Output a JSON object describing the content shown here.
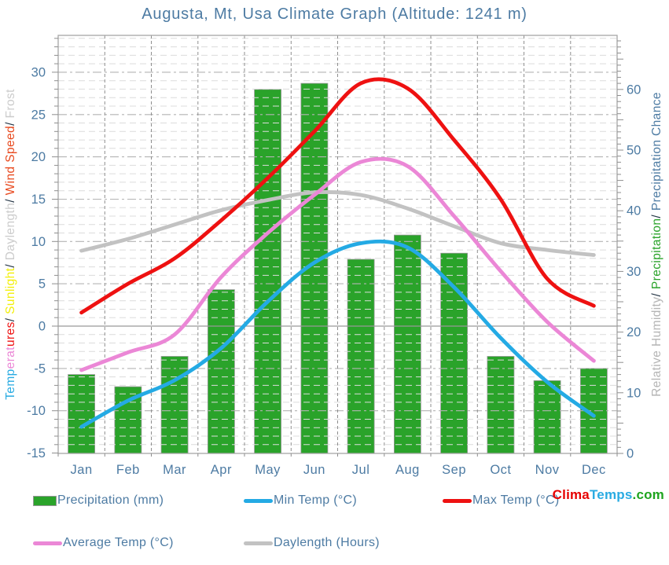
{
  "chart_data": {
    "type": "mixed",
    "title": "Augusta, Mt, Usa Climate Graph (Altitude: 1241 m)",
    "categories": [
      "Jan",
      "Feb",
      "Mar",
      "Apr",
      "May",
      "Jun",
      "Jul",
      "Aug",
      "Sep",
      "Oct",
      "Nov",
      "Dec"
    ],
    "series": [
      {
        "name": "Precipitation (mm)",
        "type": "bar",
        "axis": "right",
        "color": "#2aa32a",
        "values": [
          13,
          11,
          16,
          27,
          60,
          61,
          32,
          36,
          33,
          16,
          12,
          14
        ]
      },
      {
        "name": "Min Temp (°C)",
        "type": "line",
        "axis": "left",
        "color": "#24aae4",
        "values": [
          -11.9,
          -8.8,
          -6.4,
          -2.6,
          2.9,
          7.5,
          9.8,
          9.3,
          4.6,
          -1.4,
          -6.6,
          -10.6
        ]
      },
      {
        "name": "Max Temp (°C)",
        "type": "line",
        "axis": "left",
        "color": "#ee1111",
        "values": [
          1.6,
          5.0,
          8.0,
          12.5,
          17.5,
          23.0,
          28.7,
          28.1,
          22.0,
          15.0,
          5.6,
          2.4
        ]
      },
      {
        "name": "Average Temp (°C)",
        "type": "line",
        "axis": "left",
        "color": "#eb87d6",
        "values": [
          -5.2,
          -3.1,
          -1.0,
          5.8,
          11.0,
          15.5,
          19.4,
          18.9,
          13.0,
          6.5,
          0.5,
          -4.1
        ]
      },
      {
        "name": "Daylength (Hours)",
        "type": "line",
        "axis": "left",
        "color": "#c2c2c2",
        "values": [
          8.9,
          10.3,
          12.0,
          13.7,
          14.9,
          15.8,
          15.5,
          13.9,
          11.8,
          9.8,
          9.0,
          8.4
        ]
      }
    ],
    "left_axis": {
      "ticks": [
        30,
        25,
        20,
        15,
        10,
        5,
        0,
        -5,
        -10,
        -15
      ],
      "min": -15,
      "max": 34.3,
      "minor_step": 1,
      "major_step": 5
    },
    "right_axis": {
      "ticks": [
        0,
        10,
        20,
        30,
        40,
        50,
        60
      ],
      "min": 0,
      "max": 68.9,
      "minor_step": 1,
      "major_step": 5
    },
    "grid": true,
    "legend_position": "bottom"
  },
  "ui": {
    "text_color": "#4d7ba3",
    "left_axis_title_parts": [
      {
        "text": "Temp",
        "color": "#29abe2"
      },
      {
        "text": "erat",
        "color": "#eb87d6"
      },
      {
        "text": "ures",
        "color": "#ee1111"
      },
      {
        "text": "/ ",
        "color": "#223344"
      },
      {
        "text": "Sunlight",
        "color": "#f2ef0a"
      },
      {
        "text": "/ ",
        "color": "#223344"
      },
      {
        "text": "Daylength",
        "color": "#cccccc"
      },
      {
        "text": "/ ",
        "color": "#223344"
      },
      {
        "text": "Wind Speed",
        "color": "#e8491e"
      },
      {
        "text": "/ ",
        "color": "#223344"
      },
      {
        "text": "Frost",
        "color": "#cccccc"
      }
    ],
    "right_axis_title_parts": [
      {
        "text": "Relative Humidity",
        "color": "#b5b5b5"
      },
      {
        "text": "/ ",
        "color": "#223344"
      },
      {
        "text": "Precipitation",
        "color": "#2aa32a"
      },
      {
        "text": "/ ",
        "color": "#223344"
      },
      {
        "text": "Precipitation Chance",
        "color": "#4d7ba3"
      }
    ],
    "logo_parts": [
      {
        "text": "Clima",
        "color": "#e60000"
      },
      {
        "text": "Temps",
        "color": "#29abe2"
      },
      {
        "text": ".com",
        "color": "#1ea41e"
      }
    ]
  }
}
